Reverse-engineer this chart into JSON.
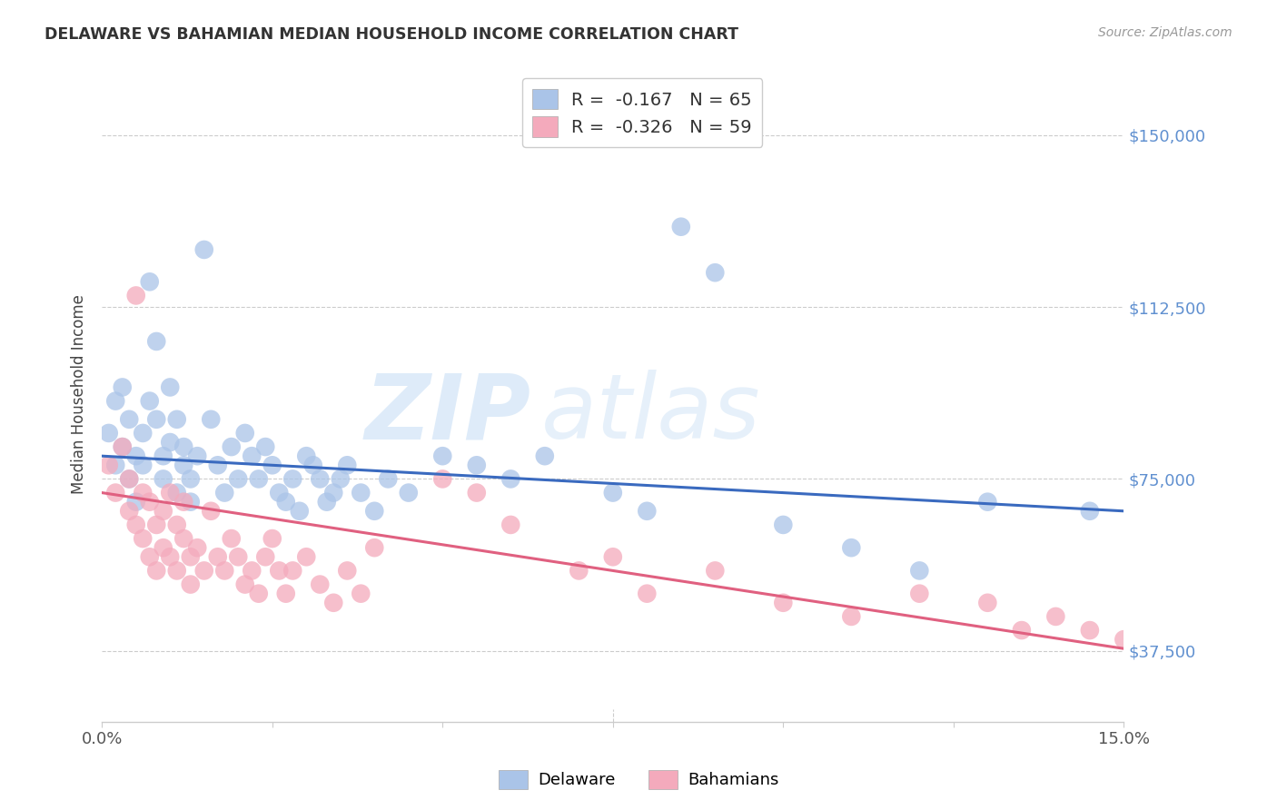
{
  "title": "DELAWARE VS BAHAMIAN MEDIAN HOUSEHOLD INCOME CORRELATION CHART",
  "source": "Source: ZipAtlas.com",
  "ylabel": "Median Household Income",
  "yticks": [
    37500,
    75000,
    112500,
    150000
  ],
  "ytick_labels": [
    "$37,500",
    "$75,000",
    "$112,500",
    "$150,000"
  ],
  "xmin": 0.0,
  "xmax": 0.15,
  "ymin": 22000,
  "ymax": 165000,
  "blue_color": "#aac4e8",
  "pink_color": "#f4aabc",
  "blue_line_color": "#3a6abf",
  "pink_line_color": "#e06080",
  "axis_color": "#6090d0",
  "legend_blue_r": "-0.167",
  "legend_blue_n": "65",
  "legend_pink_r": "-0.326",
  "legend_pink_n": "59",
  "watermark_zip": "ZIP",
  "watermark_atlas": "atlas",
  "legend_label_blue": "Delaware",
  "legend_label_pink": "Bahamians",
  "blue_x": [
    0.001,
    0.002,
    0.002,
    0.003,
    0.003,
    0.004,
    0.004,
    0.005,
    0.005,
    0.006,
    0.006,
    0.007,
    0.007,
    0.008,
    0.008,
    0.009,
    0.009,
    0.01,
    0.01,
    0.011,
    0.011,
    0.012,
    0.012,
    0.013,
    0.013,
    0.014,
    0.015,
    0.016,
    0.017,
    0.018,
    0.019,
    0.02,
    0.021,
    0.022,
    0.023,
    0.024,
    0.025,
    0.026,
    0.027,
    0.028,
    0.029,
    0.03,
    0.031,
    0.032,
    0.033,
    0.034,
    0.035,
    0.036,
    0.038,
    0.04,
    0.042,
    0.045,
    0.05,
    0.055,
    0.06,
    0.065,
    0.075,
    0.08,
    0.085,
    0.09,
    0.1,
    0.11,
    0.12,
    0.13,
    0.145
  ],
  "blue_y": [
    85000,
    78000,
    92000,
    82000,
    95000,
    88000,
    75000,
    80000,
    70000,
    85000,
    78000,
    92000,
    118000,
    88000,
    105000,
    80000,
    75000,
    95000,
    83000,
    88000,
    72000,
    82000,
    78000,
    75000,
    70000,
    80000,
    125000,
    88000,
    78000,
    72000,
    82000,
    75000,
    85000,
    80000,
    75000,
    82000,
    78000,
    72000,
    70000,
    75000,
    68000,
    80000,
    78000,
    75000,
    70000,
    72000,
    75000,
    78000,
    72000,
    68000,
    75000,
    72000,
    80000,
    78000,
    75000,
    80000,
    72000,
    68000,
    130000,
    120000,
    65000,
    60000,
    55000,
    70000,
    68000
  ],
  "pink_x": [
    0.001,
    0.002,
    0.003,
    0.004,
    0.004,
    0.005,
    0.005,
    0.006,
    0.006,
    0.007,
    0.007,
    0.008,
    0.008,
    0.009,
    0.009,
    0.01,
    0.01,
    0.011,
    0.011,
    0.012,
    0.012,
    0.013,
    0.013,
    0.014,
    0.015,
    0.016,
    0.017,
    0.018,
    0.019,
    0.02,
    0.021,
    0.022,
    0.023,
    0.024,
    0.025,
    0.026,
    0.027,
    0.028,
    0.03,
    0.032,
    0.034,
    0.036,
    0.038,
    0.04,
    0.05,
    0.055,
    0.06,
    0.07,
    0.075,
    0.08,
    0.09,
    0.1,
    0.11,
    0.12,
    0.13,
    0.135,
    0.14,
    0.145,
    0.15
  ],
  "pink_y": [
    78000,
    72000,
    82000,
    75000,
    68000,
    115000,
    65000,
    72000,
    62000,
    70000,
    58000,
    65000,
    55000,
    68000,
    60000,
    72000,
    58000,
    65000,
    55000,
    70000,
    62000,
    58000,
    52000,
    60000,
    55000,
    68000,
    58000,
    55000,
    62000,
    58000,
    52000,
    55000,
    50000,
    58000,
    62000,
    55000,
    50000,
    55000,
    58000,
    52000,
    48000,
    55000,
    50000,
    60000,
    75000,
    72000,
    65000,
    55000,
    58000,
    50000,
    55000,
    48000,
    45000,
    50000,
    48000,
    42000,
    45000,
    42000,
    40000
  ]
}
